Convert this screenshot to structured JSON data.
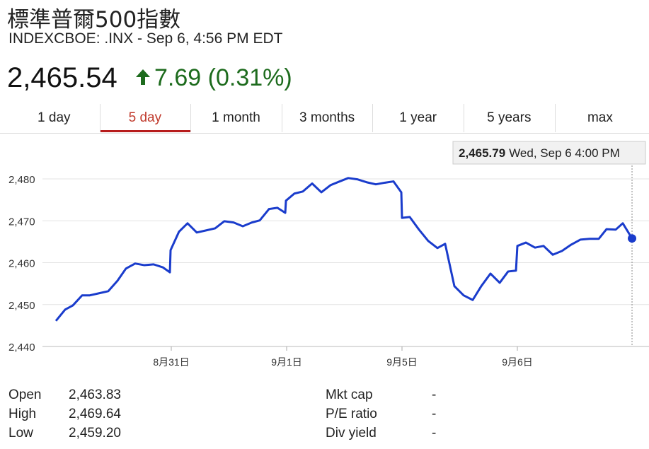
{
  "header": {
    "title": "標準普爾500指數",
    "subtitle": "INDEXCBOE: .INX - Sep 6, 4:56 PM EDT",
    "price": "2,465.54",
    "change": "7.69",
    "change_percent": "(0.31%)"
  },
  "tabs": {
    "items": [
      "1 day",
      "5 day",
      "1 month",
      "3 months",
      "1 year",
      "5 years",
      "max"
    ],
    "active": 1
  },
  "chart_data": {
    "type": "line",
    "annotation": {
      "value": "2,465.79",
      "text": "Wed, Sep 6 4:00 PM"
    },
    "x": [
      0,
      0.08,
      0.147,
      0.227,
      0.294,
      0.374,
      0.454,
      0.534,
      0.607,
      0.687,
      0.767,
      0.847,
      0.926,
      0.988,
      0.994,
      1.067,
      1.141,
      1.221,
      1.301,
      1.38,
      1.46,
      1.54,
      1.62,
      1.699,
      1.767,
      1.847,
      1.92,
      1.988,
      1.994,
      2.067,
      2.141,
      2.221,
      2.301,
      2.38,
      2.46,
      2.534,
      2.613,
      2.693,
      2.773,
      2.853,
      2.926,
      2.994,
      3.0,
      3.067,
      3.147,
      3.227,
      3.307,
      3.374,
      3.454,
      3.534,
      3.613,
      3.687,
      3.767,
      3.847,
      3.92,
      3.988,
      4.0,
      4.074,
      4.153,
      4.227,
      4.307,
      4.387,
      4.466,
      4.546,
      4.626,
      4.706,
      4.773,
      4.853,
      4.914,
      4.994
    ],
    "series": [
      {
        "color": "#1a3ccc",
        "values": [
          2446.1,
          2448.8,
          2449.8,
          2452.2,
          2452.2,
          2452.7,
          2453.2,
          2455.7,
          2458.6,
          2459.8,
          2459.4,
          2459.6,
          2458.9,
          2457.7,
          2463.0,
          2467.4,
          2469.4,
          2467.2,
          2467.7,
          2468.2,
          2469.9,
          2469.6,
          2468.7,
          2469.6,
          2470.1,
          2472.8,
          2473.1,
          2471.9,
          2474.8,
          2476.5,
          2477.0,
          2478.9,
          2476.8,
          2478.5,
          2479.4,
          2480.2,
          2479.9,
          2479.2,
          2478.7,
          2479.1,
          2479.4,
          2476.8,
          2470.7,
          2470.9,
          2467.9,
          2465.2,
          2463.5,
          2464.5,
          2454.4,
          2452.2,
          2451.1,
          2454.4,
          2457.4,
          2455.2,
          2457.9,
          2458.1,
          2464.0,
          2464.8,
          2463.6,
          2464.0,
          2461.9,
          2462.8,
          2464.3,
          2465.5,
          2465.7,
          2465.7,
          2468.0,
          2467.9,
          2469.4,
          2465.79
        ]
      }
    ],
    "xlim": [
      0,
      5
    ],
    "xticks": [
      {
        "value": 1,
        "label": "8月31日"
      },
      {
        "value": 2,
        "label": "9月1日"
      },
      {
        "value": 3,
        "label": "9月5日"
      },
      {
        "value": 4,
        "label": "9月6日"
      }
    ],
    "ylim": [
      2440,
      2480
    ],
    "yticks": [
      {
        "value": 2440,
        "label": "2,440"
      },
      {
        "value": 2450,
        "label": "2,450"
      },
      {
        "value": 2460,
        "label": "2,460"
      },
      {
        "value": 2470,
        "label": "2,470"
      },
      {
        "value": 2480,
        "label": "2,480"
      }
    ],
    "grid": true
  },
  "stats": {
    "rows": [
      [
        "Open",
        "2,463.83",
        "Mkt cap",
        "-"
      ],
      [
        "High",
        "2,469.64",
        "P/E ratio",
        "-"
      ],
      [
        "Low",
        "2,459.20",
        "Div yield",
        "-"
      ]
    ]
  }
}
